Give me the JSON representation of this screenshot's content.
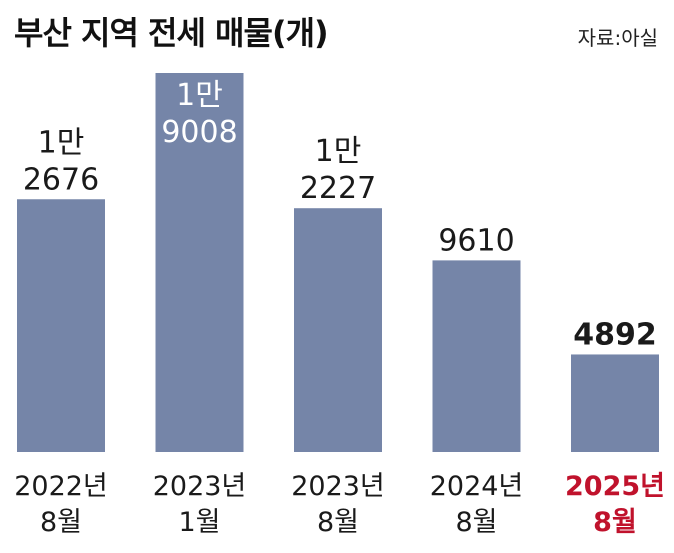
{
  "header": {
    "title": "부산 지역 전세 매물(개)",
    "source": "자료:아실"
  },
  "colors": {
    "bar": "#7585a8",
    "highlight_text": "#c0122c"
  },
  "chart_data": {
    "type": "bar",
    "title": "부산 지역 전세 매물(개)",
    "xlabel": "",
    "ylabel": "",
    "grid": false,
    "ylim": [
      0,
      19008
    ],
    "categories": [
      [
        "2022년",
        "8월"
      ],
      [
        "2023년",
        "1월"
      ],
      [
        "2023년",
        "8월"
      ],
      [
        "2024년",
        "8월"
      ],
      [
        "2025년",
        "8월"
      ]
    ],
    "values": [
      12676,
      19008,
      12227,
      9610,
      4892
    ],
    "data_labels": [
      [
        "1만",
        "2676"
      ],
      [
        "1만",
        "9008"
      ],
      [
        "1만",
        "2227"
      ],
      [
        "9610"
      ],
      [
        "4892"
      ]
    ],
    "highlight_index": 4
  }
}
